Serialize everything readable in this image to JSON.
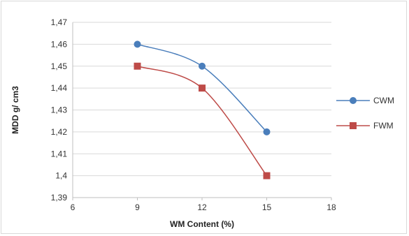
{
  "chart_data": {
    "type": "line",
    "title": "",
    "xlabel": "WM Content (%)",
    "ylabel": "MDD g/ cm3",
    "x": [
      9,
      12,
      15
    ],
    "xlim": [
      6,
      18
    ],
    "xticks": [
      6,
      9,
      12,
      15,
      18
    ],
    "xtick_labels": [
      "6",
      "9",
      "12",
      "15",
      "18"
    ],
    "ylim": [
      1.39,
      1.47
    ],
    "yticks": [
      1.39,
      1.4,
      1.41,
      1.42,
      1.43,
      1.44,
      1.45,
      1.46,
      1.47
    ],
    "ytick_labels": [
      "1,39",
      "1,4",
      "1,41",
      "1,42",
      "1,43",
      "1,44",
      "1,45",
      "1,46",
      "1,47"
    ],
    "grid": "horizontal",
    "smooth": true,
    "legend_position": "right",
    "series": [
      {
        "name": "CWM",
        "values": [
          1.46,
          1.45,
          1.42
        ],
        "color": "#4a7ebb",
        "marker": "circle"
      },
      {
        "name": "FWM",
        "values": [
          1.45,
          1.44,
          1.4
        ],
        "color": "#be4b48",
        "marker": "square"
      }
    ]
  }
}
